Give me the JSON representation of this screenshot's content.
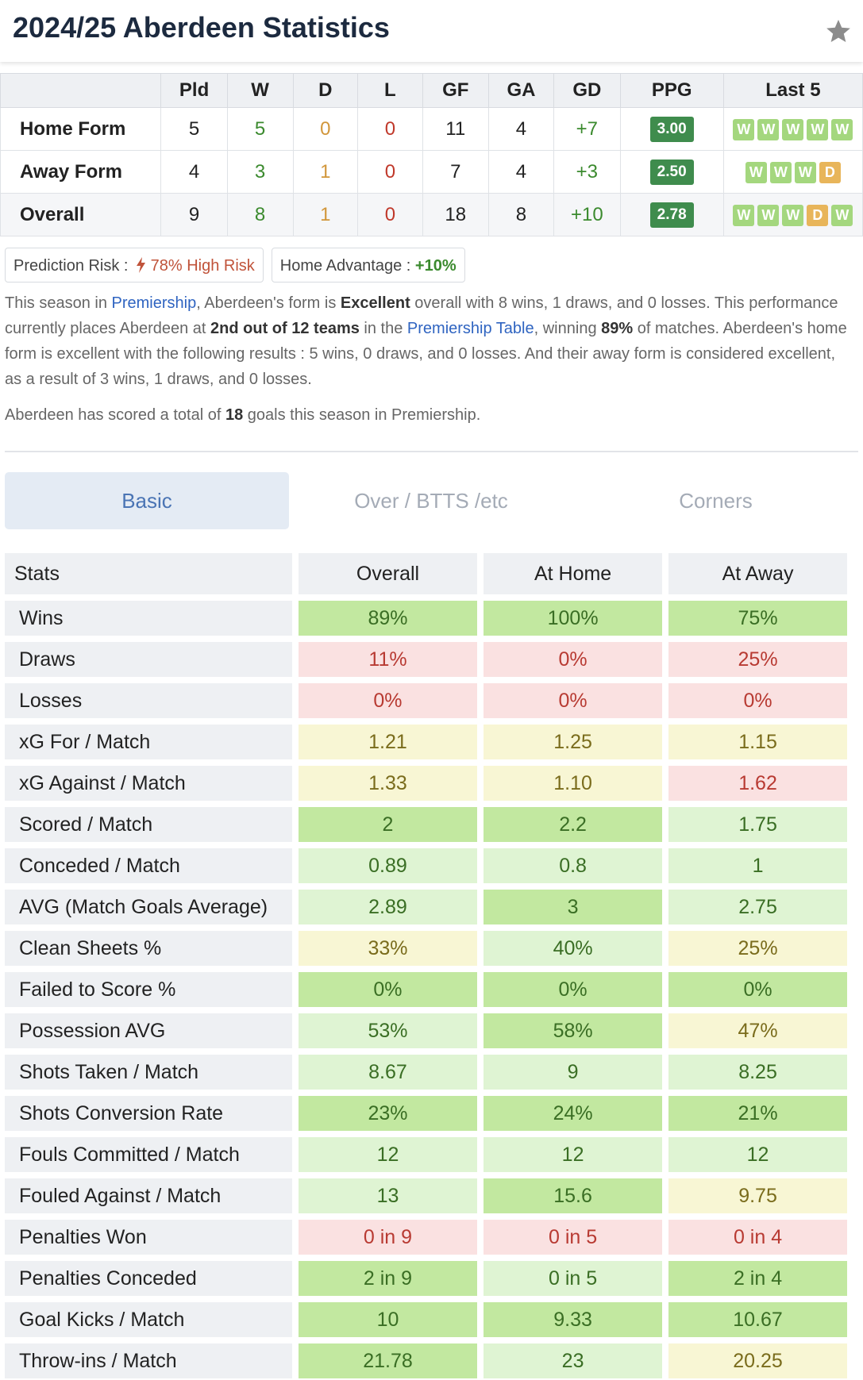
{
  "header": {
    "title": "2024/25 Aberdeen Statistics",
    "star_icon": "star-icon"
  },
  "form_table": {
    "columns": [
      "",
      "Pld",
      "W",
      "D",
      "L",
      "GF",
      "GA",
      "GD",
      "PPG",
      "Last 5"
    ],
    "rows": [
      {
        "label": "Home Form",
        "pld": "5",
        "w": "5",
        "d": "0",
        "l": "0",
        "gf": "11",
        "ga": "4",
        "gd": "+7",
        "ppg": "3.00",
        "last5": [
          "W",
          "W",
          "W",
          "W",
          "W"
        ]
      },
      {
        "label": "Away Form",
        "pld": "4",
        "w": "3",
        "d": "1",
        "l": "0",
        "gf": "7",
        "ga": "4",
        "gd": "+3",
        "ppg": "2.50",
        "last5": [
          "W",
          "W",
          "W",
          "D"
        ]
      },
      {
        "label": "Overall",
        "pld": "9",
        "w": "8",
        "d": "1",
        "l": "0",
        "gf": "18",
        "ga": "8",
        "gd": "+10",
        "ppg": "2.78",
        "last5": [
          "W",
          "W",
          "W",
          "D",
          "W"
        ]
      }
    ]
  },
  "badges": {
    "risk_label": "Prediction Risk :",
    "risk_value": "78% High Risk",
    "home_adv_label": "Home Advantage :",
    "home_adv_value": "+10%"
  },
  "summary": {
    "p1": "This season in ",
    "league_link": "Premiership",
    "p2": ", Aberdeen's form is ",
    "form_word": "Excellent",
    "p3": " overall with 8 wins, 1 draws, and 0 losses. This performance currently places Aberdeen at ",
    "position": "2nd out of 12 teams",
    "p4": " in the ",
    "table_link": "Premiership Table",
    "p5": ", winning ",
    "win_pct": "89%",
    "p6": " of matches. Aberdeen's home form is excellent with the following results : 5 wins, 0 draws, and 0 losses. And their away form is considered excellent, as a result of 3 wins, 1 draws, and 0 losses.",
    "goals_p1": "Aberdeen has scored a total of ",
    "goals_total": "18",
    "goals_p2": " goals this season in Premiership."
  },
  "tabs": [
    "Basic",
    "Over / BTTS /etc",
    "Corners"
  ],
  "stats": {
    "headers": [
      "Stats",
      "Overall",
      "At Home",
      "At Away"
    ],
    "rows": [
      {
        "name": "Wins",
        "v": [
          "89%",
          "100%",
          "75%"
        ]
      },
      {
        "name": "Draws",
        "v": [
          "11%",
          "0%",
          "25%"
        ]
      },
      {
        "name": "Losses",
        "v": [
          "0%",
          "0%",
          "0%"
        ]
      },
      {
        "name": "xG For / Match",
        "v": [
          "1.21",
          "1.25",
          "1.15"
        ]
      },
      {
        "name": "xG Against / Match",
        "v": [
          "1.33",
          "1.10",
          "1.62"
        ]
      },
      {
        "name": "Scored / Match",
        "v": [
          "2",
          "2.2",
          "1.75"
        ]
      },
      {
        "name": "Conceded / Match",
        "v": [
          "0.89",
          "0.8",
          "1"
        ]
      },
      {
        "name": "AVG (Match Goals Average)",
        "v": [
          "2.89",
          "3",
          "2.75"
        ]
      },
      {
        "name": "Clean Sheets %",
        "v": [
          "33%",
          "40%",
          "25%"
        ]
      },
      {
        "name": "Failed to Score %",
        "v": [
          "0%",
          "0%",
          "0%"
        ]
      },
      {
        "name": "Possession AVG",
        "v": [
          "53%",
          "58%",
          "47%"
        ]
      },
      {
        "name": "Shots Taken / Match",
        "v": [
          "8.67",
          "9",
          "8.25"
        ]
      },
      {
        "name": "Shots Conversion Rate",
        "v": [
          "23%",
          "24%",
          "21%"
        ]
      },
      {
        "name": "Fouls Committed / Match",
        "v": [
          "12",
          "12",
          "12"
        ]
      },
      {
        "name": "Fouled Against / Match",
        "v": [
          "13",
          "15.6",
          "9.75"
        ]
      },
      {
        "name": "Penalties Won",
        "v": [
          "0 in 9",
          "0 in 5",
          "0 in 4"
        ]
      },
      {
        "name": "Penalties Conceded",
        "v": [
          "2 in 9",
          "0 in 5",
          "2 in 4"
        ]
      },
      {
        "name": "Goal Kicks / Match",
        "v": [
          "10",
          "9.33",
          "10.67"
        ]
      },
      {
        "name": "Throw-ins / Match",
        "v": [
          "21.78",
          "23",
          "20.25"
        ]
      }
    ]
  },
  "colors": {
    "strong_green": "#c2e8a0",
    "light_green": "#dff4d3",
    "yellow": "#f8f6d4",
    "red": "#fae1e1",
    "ppg_green": "#3f8c4d",
    "link_blue": "#2f64c1"
  }
}
